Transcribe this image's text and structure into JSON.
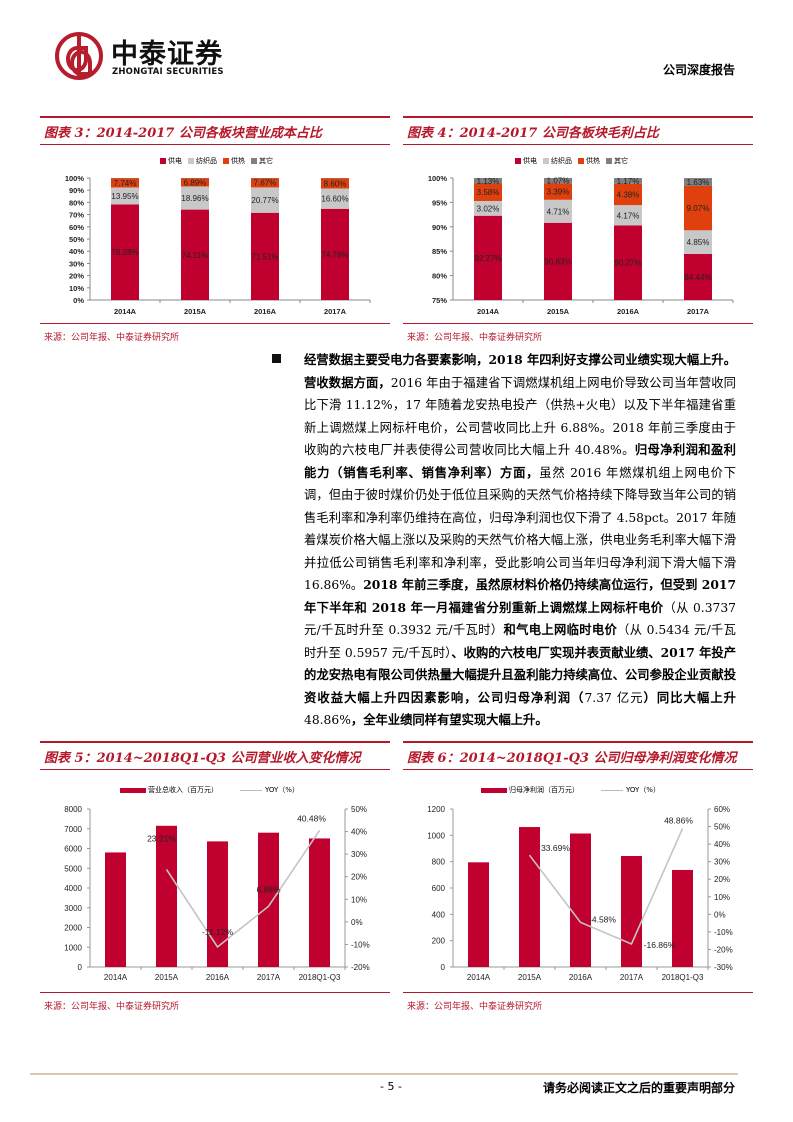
{
  "header": {
    "logo_cn": "中泰证券",
    "logo_en": "ZHONGTAI SECURITIES",
    "report_type": "公司深度报告"
  },
  "colors": {
    "brand_red": "#b5182b",
    "bar_red": "#c0002f",
    "textile_grey": "#c8c8c8",
    "heat_orange": "#e0400d",
    "other_grey": "#808080",
    "yoy_line": "#c4c4c4"
  },
  "figures": [
    {
      "title": "图表 3：2014-2017 公司各板块营业成本占比",
      "source": "来源：公司年报、中泰证券研究所"
    },
    {
      "title": "图表 4：2014-2017 公司各板块毛利占比",
      "source": "来源：公司年报、中泰证券研究所"
    },
    {
      "title": "图表 5：2014~2018Q1-Q3 公司营业收入变化情况",
      "source": "来源：公司年报、中泰证券研究所"
    },
    {
      "title": "图表 6：2014~2018Q1-Q3 公司归母净利润变化情况",
      "source": "来源：公司年报、中泰证券研究所"
    }
  ],
  "chart_data": [
    {
      "type": "bar",
      "stacked": true,
      "title": "2014-2017 公司各板块营业成本占比",
      "categories": [
        "2014A",
        "2015A",
        "2016A",
        "2017A"
      ],
      "series": [
        {
          "name": "供电",
          "values": [
            78.28,
            74.11,
            71.51,
            74.78
          ],
          "labels": [
            "78.28%",
            "74.11%",
            "71.51%",
            "74.78%"
          ]
        },
        {
          "name": "纺织品",
          "values": [
            13.95,
            18.96,
            20.77,
            16.6
          ],
          "labels": [
            "13.95%",
            "18.96%",
            "20.77%",
            "16.60%"
          ]
        },
        {
          "name": "供热",
          "values": [
            7.74,
            6.89,
            7.67,
            8.6
          ],
          "labels": [
            "7.74%",
            "6.89%",
            "7.67%",
            "8.60%"
          ]
        },
        {
          "name": "其它",
          "values": [
            0.03,
            0.04,
            0.05,
            0.02
          ],
          "labels": [
            "",
            "",
            "",
            ""
          ]
        }
      ],
      "legend": [
        "供电",
        "纺织品",
        "供热",
        "其它"
      ],
      "legend_position": "top",
      "yticks": [
        "0%",
        "10%",
        "20%",
        "30%",
        "40%",
        "50%",
        "60%",
        "70%",
        "80%",
        "90%",
        "100%"
      ],
      "ylim": [
        0,
        100
      ],
      "grid": false
    },
    {
      "type": "bar",
      "stacked": true,
      "title": "2014-2017 公司各板块毛利占比",
      "categories": [
        "2014A",
        "2015A",
        "2016A",
        "2017A"
      ],
      "series": [
        {
          "name": "供电",
          "values": [
            92.27,
            90.83,
            90.27,
            84.44
          ],
          "labels": [
            "92.27%",
            "90.83%",
            "90.27%",
            "84.44%"
          ]
        },
        {
          "name": "纺织品",
          "values": [
            3.02,
            4.71,
            4.17,
            4.85
          ],
          "labels": [
            "3.02%",
            "4.71%",
            "4.17%",
            "4.85%"
          ]
        },
        {
          "name": "供热",
          "values": [
            3.58,
            3.39,
            4.38,
            9.07
          ],
          "labels": [
            "3.58%",
            "3.39%",
            "4.38%",
            "9.07%"
          ]
        },
        {
          "name": "其它",
          "values": [
            1.13,
            1.07,
            1.17,
            1.63
          ],
          "labels": [
            "1.13%",
            "1.07%",
            "1.17%",
            "1.63%"
          ]
        }
      ],
      "legend": [
        "供电",
        "纺织品",
        "供热",
        "其它"
      ],
      "legend_position": "top",
      "yticks": [
        "75%",
        "80%",
        "85%",
        "90%",
        "95%",
        "100%"
      ],
      "ylim": [
        75,
        100
      ],
      "grid": false
    },
    {
      "type": "bar+line",
      "title": "2014~2018Q1-Q3 公司营业收入变化情况",
      "categories": [
        "2014A",
        "2015A",
        "2016A",
        "2017A",
        "2018Q1-Q3"
      ],
      "series": [
        {
          "name": "营业总收入（百万元）",
          "type": "bar",
          "axis": "left",
          "values": [
            5800,
            7150,
            6360,
            6800,
            6510
          ]
        },
        {
          "name": "YOY（%）",
          "type": "line",
          "axis": "right",
          "values": [
            null,
            23.21,
            -11.12,
            6.88,
            40.48
          ],
          "labels": [
            "",
            "23.21%",
            "-11.12%",
            "6.88%",
            "40.48%"
          ]
        }
      ],
      "legend": [
        "营业总收入（百万元）",
        "YOY（%）"
      ],
      "legend_position": "top",
      "yticks_left": [
        "0",
        "1000",
        "2000",
        "3000",
        "4000",
        "5000",
        "6000",
        "7000",
        "8000"
      ],
      "yticks_right": [
        "-20%",
        "-10%",
        "0%",
        "10%",
        "20%",
        "30%",
        "40%",
        "50%"
      ],
      "ylim_left": [
        0,
        8000
      ],
      "ylim_right": [
        -20,
        50
      ],
      "grid": false
    },
    {
      "type": "bar+line",
      "title": "2014~2018Q1-Q3 公司归母净利润变化情况",
      "categories": [
        "2014A",
        "2015A",
        "2016A",
        "2017A",
        "2018Q1-Q3"
      ],
      "series": [
        {
          "name": "归母净利润（百万元）",
          "type": "bar",
          "axis": "left",
          "values": [
            795,
            1063,
            1014,
            843,
            737
          ]
        },
        {
          "name": "YOY（%）",
          "type": "line",
          "axis": "right",
          "values": [
            null,
            33.69,
            -4.58,
            -16.86,
            48.86
          ],
          "labels": [
            "",
            "33.69%",
            "-4.58%",
            "-16.86%",
            "48.86%"
          ]
        }
      ],
      "legend": [
        "归母净利润（百万元）",
        "YOY（%）"
      ],
      "legend_position": "top",
      "yticks_left": [
        "0",
        "200",
        "400",
        "600",
        "800",
        "1000",
        "1200"
      ],
      "yticks_right": [
        "-30%",
        "-20%",
        "-10%",
        "0%",
        "10%",
        "20%",
        "30%",
        "40%",
        "50%",
        "60%"
      ],
      "ylim_left": [
        0,
        1200
      ],
      "ylim_right": [
        -30,
        60
      ],
      "grid": false
    }
  ],
  "body": {
    "segments": [
      {
        "bold": true,
        "text": "经营数据主要受电力各要素影响，2018 年四利好支撑公司业绩实现大幅上升。营收数据方面，"
      },
      {
        "bold": false,
        "text": "2016 年由于福建省下调燃煤机组上网电价导致公司当年营收同比下滑 11.12%，17 年随着龙安热电投产（供热+火电）以及下半年福建省重新上调燃煤上网标杆电价，公司营收同比上升 6.88%。2018 年前三季度由于收购的六枝电厂并表使得公司营收同比大幅上升 40.48%。"
      },
      {
        "bold": true,
        "text": "归母净利润和盈利能力（销售毛利率、销售净利率）方面，"
      },
      {
        "bold": false,
        "text": "虽然 2016 年燃煤机组上网电价下调，但由于彼时煤价仍处于低位且采购的天然气价格持续下降导致当年公司的销售毛利率和净利率仍维持在高位，归母净利润也仅下滑了 4.58pct。2017 年随着煤炭价格大幅上涨以及采购的天然气价格大幅上涨，供电业务毛利率大幅下滑并拉低公司销售毛利率和净利率，受此影响公司当年归母净利润下滑大幅下滑 16.86%。"
      },
      {
        "bold": true,
        "text": "2018 年前三季度，虽然原材料价格仍持续高位运行，但受到 2017 年下半年和 2018 年一月福建省分别重新上调燃煤上网标杆电价"
      },
      {
        "bold": false,
        "text": "（从 0.3737 元/千瓦时升至 0.3932 元/千瓦时）"
      },
      {
        "bold": true,
        "text": "和气电上网临时电价"
      },
      {
        "bold": false,
        "text": "（从 0.5434 元/千瓦时升至 0.5957 元/千瓦时）"
      },
      {
        "bold": true,
        "text": "、收购的六枝电厂实现并表贡献业绩、2017 年投产的龙安热电有限公司供热量大幅提升且盈利能力持续高位、公司参股企业贡献投资收益大幅上升四因素影响，公司归母净利润（"
      },
      {
        "bold": false,
        "text": "7.37 亿元"
      },
      {
        "bold": true,
        "text": "）同比大幅上升 "
      },
      {
        "bold": false,
        "text": "48.86%"
      },
      {
        "bold": true,
        "text": "，全年业绩同样有望实现大幅上升。"
      }
    ]
  },
  "footer": {
    "page_number": "- 5 -",
    "disclaimer": "请务必阅读正文之后的重要声明部分"
  }
}
